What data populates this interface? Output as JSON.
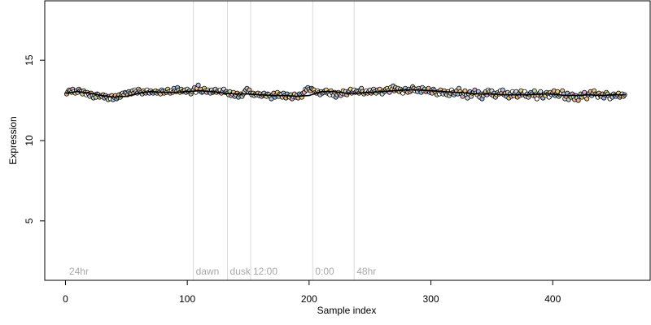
{
  "chart_data": {
    "type": "scatter",
    "title": "",
    "xlabel": "Sample index",
    "ylabel": "Expression",
    "xlim": [
      -17,
      480
    ],
    "ylim": [
      1.3,
      18.7
    ],
    "xticks": [
      0,
      100,
      200,
      300,
      400
    ],
    "yticks": [
      5,
      10,
      15
    ],
    "grid": false,
    "legend": "none",
    "phase_lines": [
      {
        "x": 105,
        "label": "dawn"
      },
      {
        "x": 133,
        "label": "dusk"
      },
      {
        "x": 152,
        "label": "12:00"
      },
      {
        "x": 203,
        "label": "0:00"
      },
      {
        "x": 237,
        "label": "48hr"
      }
    ],
    "phase_start_label": "24hr",
    "trend": {
      "x": [
        0,
        10,
        20,
        30,
        40,
        50,
        60,
        70,
        80,
        90,
        100,
        110,
        120,
        130,
        140,
        150,
        160,
        170,
        180,
        190,
        200,
        210,
        220,
        230,
        240,
        250,
        260,
        270,
        280,
        290,
        300,
        310,
        320,
        330,
        340,
        350,
        360,
        370,
        380,
        390,
        400,
        410,
        420,
        430,
        440,
        450,
        460
      ],
      "y": [
        12.95,
        13.05,
        12.95,
        12.8,
        12.7,
        12.75,
        12.95,
        13.05,
        13.0,
        13.0,
        13.05,
        13.1,
        13.05,
        12.95,
        12.9,
        12.9,
        12.85,
        12.8,
        12.8,
        12.75,
        12.8,
        13.05,
        13.05,
        12.95,
        12.95,
        13.0,
        13.05,
        13.1,
        13.15,
        13.15,
        13.1,
        13.05,
        13.0,
        12.95,
        12.9,
        12.9,
        12.85,
        12.85,
        12.85,
        12.9,
        12.9,
        12.8,
        12.8,
        12.85,
        12.8,
        12.85,
        12.85
      ]
    },
    "series": [
      {
        "x_start": 1,
        "x_step": 1,
        "values": [
          12.9,
          13.05,
          13.15,
          13.1,
          13.0,
          13.2,
          13.05,
          12.95,
          13.1,
          13.0,
          13.2,
          13.1,
          13.05,
          12.9,
          13.1,
          13.0,
          12.85,
          13.0,
          12.9,
          12.75,
          12.95,
          12.8,
          12.65,
          12.85,
          12.7,
          12.9,
          12.85,
          12.7,
          12.8,
          12.75,
          12.85,
          12.65,
          12.8,
          12.7,
          12.55,
          12.75,
          12.6,
          12.8,
          12.55,
          12.7,
          12.8,
          12.6,
          12.7,
          12.85,
          12.7,
          12.9,
          12.95,
          12.85,
          13.0,
          12.95,
          12.85,
          13.05,
          12.95,
          12.9,
          13.1,
          12.95,
          13.15,
          13.05,
          12.95,
          13.2,
          13.1,
          13.0,
          12.9,
          13.1,
          13.0,
          12.95,
          13.15,
          13.0,
          12.95,
          13.1,
          13.0,
          12.95,
          13.05,
          13.1,
          12.95,
          13.05,
          13.0,
          12.9,
          13.15,
          13.05,
          12.95,
          13.1,
          13.0,
          13.2,
          13.05,
          12.95,
          13.1,
          13.0,
          13.25,
          13.1,
          13.05,
          13.3,
          13.15,
          13.0,
          13.2,
          13.05,
          13.1,
          13.15,
          13.0,
          13.2,
          13.05,
          13.1,
          12.9,
          13.05,
          13.15,
          13.3,
          13.0,
          13.25,
          13.45,
          13.1,
          13.2,
          13.0,
          13.05,
          13.25,
          13.1,
          13.0,
          13.15,
          13.05,
          12.95,
          13.15,
          13.0,
          13.05,
          13.2,
          13.0,
          13.1,
          13.05,
          13.15,
          12.95,
          13.1,
          13.2,
          13.0,
          13.05,
          12.95,
          12.85,
          13.05,
          12.8,
          12.9,
          13.0,
          12.75,
          12.85,
          12.95,
          12.7,
          12.85,
          12.9,
          12.75,
          12.9,
          13.05,
          13.15,
          13.25,
          13.05,
          13.15,
          12.95,
          12.85,
          12.95,
          12.8,
          12.9,
          12.85,
          12.95,
          12.8,
          12.9,
          12.75,
          12.85,
          12.95,
          12.8,
          12.75,
          12.9,
          12.85,
          12.75,
          12.6,
          12.85,
          12.95,
          12.7,
          12.85,
          13.0,
          12.75,
          12.9,
          12.85,
          12.7,
          12.95,
          12.8,
          12.65,
          12.9,
          12.75,
          12.7,
          12.85,
          12.6,
          12.75,
          12.9,
          12.7,
          12.8,
          12.65,
          12.9,
          12.8,
          12.7,
          12.95,
          13.0,
          13.2,
          13.15,
          13.3,
          13.2,
          13.1,
          13.25,
          13.2,
          13.15,
          13.0,
          12.95,
          13.1,
          13.0,
          12.85,
          13.05,
          12.95,
          13.0,
          13.1,
          13.15,
          12.95,
          13.0,
          12.85,
          13.1,
          12.95,
          12.8,
          13.0,
          12.7,
          12.85,
          13.0,
          12.9,
          12.8,
          12.95,
          13.1,
          12.9,
          13.05,
          12.85,
          13.0,
          13.1,
          13.2,
          12.95,
          13.05,
          13.15,
          13.0,
          13.1,
          13.05,
          12.95,
          13.15,
          13.25,
          13.05,
          12.9,
          13.0,
          13.1,
          12.95,
          13.05,
          13.15,
          12.95,
          13.05,
          13.2,
          13.05,
          12.95,
          13.15,
          13.05,
          13.2,
          13.0,
          12.9,
          13.1,
          13.05,
          13.2,
          13.25,
          13.1,
          13.0,
          13.3,
          13.2,
          13.4,
          13.1,
          13.3,
          13.15,
          13.25,
          13.05,
          13.2,
          13.1,
          12.95,
          13.15,
          13.25,
          13.1,
          13.0,
          13.2,
          13.05,
          13.15,
          13.35,
          13.25,
          13.1,
          13.2,
          13.05,
          13.25,
          13.15,
          13.0,
          13.3,
          13.1,
          13.2,
          13.05,
          13.15,
          13.25,
          13.0,
          13.1,
          12.95,
          13.2,
          13.1,
          13.0,
          12.85,
          13.05,
          12.9,
          13.15,
          13.0,
          12.9,
          13.1,
          12.95,
          12.85,
          13.05,
          12.8,
          12.95,
          13.15,
          13.0,
          12.85,
          12.95,
          13.1,
          12.9,
          13.25,
          13.05,
          12.9,
          12.75,
          12.95,
          13.1,
          12.85,
          12.65,
          12.9,
          13.05,
          12.75,
          12.95,
          13.0,
          13.15,
          12.95,
          12.85,
          13.05,
          12.7,
          12.9,
          12.6,
          12.8,
          12.95,
          13.05,
          12.85,
          13.15,
          13.05,
          12.9,
          13.1,
          12.8,
          12.95,
          12.7,
          12.85,
          13.0,
          12.9,
          13.1,
          12.95,
          13.15,
          12.85,
          12.95,
          12.75,
          13.0,
          12.65,
          12.9,
          12.75,
          13.05,
          12.8,
          12.95,
          13.05,
          12.7,
          12.9,
          12.8,
          13.1,
          12.85,
          12.95,
          13.05,
          12.75,
          12.9,
          12.7,
          12.85,
          13.0,
          12.9,
          12.8,
          13.1,
          12.75,
          12.6,
          12.85,
          12.95,
          13.05,
          12.75,
          12.65,
          12.9,
          12.8,
          13.0,
          12.9,
          12.7,
          13.0,
          12.85,
          12.95,
          13.1,
          12.8,
          12.9,
          13.05,
          12.75,
          12.85,
          12.95,
          13.1,
          12.9,
          12.6,
          12.75,
          12.95,
          12.55,
          12.8,
          12.7,
          12.9,
          12.75,
          12.55,
          12.8,
          12.65,
          12.5,
          12.75,
          12.9,
          12.7,
          12.85,
          13.0,
          12.75,
          12.6,
          12.85,
          12.95,
          13.05,
          12.8,
          12.95,
          13.1,
          12.9,
          12.85,
          12.7,
          12.95,
          12.8,
          12.75,
          12.9,
          12.65,
          12.85,
          13.0,
          12.9,
          12.75,
          12.6,
          12.8,
          12.7,
          12.9,
          12.8,
          12.75,
          12.85,
          12.95,
          12.7,
          12.8,
          12.9,
          12.75,
          12.85
        ]
      }
    ],
    "point_colors": [
      "#e8b08a",
      "#9cb6d9",
      "#c8c8c8",
      "#e6d27a",
      "#b9d6a8",
      "#d9a5c8",
      "#ffffff",
      "#f0c08f",
      "#a8c4e0",
      "#d8d8d8"
    ],
    "colors": {
      "axis": "#000000",
      "phase_line": "#d9d9d9",
      "phase_label": "#a8a8a8",
      "point_edge": "#000000",
      "trend": "#000000"
    }
  }
}
